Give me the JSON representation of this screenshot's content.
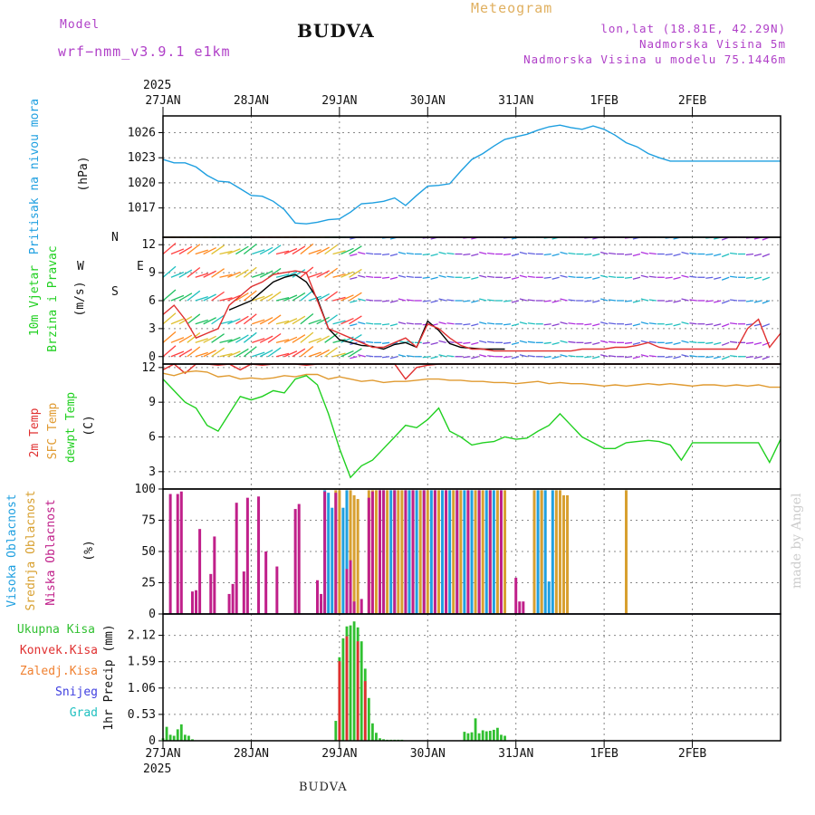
{
  "header": {
    "title": "BUDVA",
    "subtitle": "Meteogram",
    "model_label": "Model",
    "model_name": "wrf−nmm_v3.9.1 e1km",
    "location": "lon,lat (18.81E, 42.29N)",
    "elevation": "Nadmorska Visina 5m",
    "model_elevation": "Nadmorska Visina u modelu 75.1446m",
    "bottom_title": "BUDVA",
    "credit": "made by Angel"
  },
  "axis": {
    "year": "2025",
    "dates": [
      "27JAN",
      "28JAN",
      "29JAN",
      "30JAN",
      "31JAN",
      "1FEB",
      "2FEB"
    ]
  },
  "colors": {
    "pressure": "#1e9fe0",
    "wind": "#d040e0",
    "temp2m": "#e03030",
    "sfc": "#e09a30",
    "dewpt": "#20d020",
    "high": "#20a0e0",
    "mid": "#d8a030",
    "low": "#c0208a",
    "total": "#30c030",
    "conv": "#e03030",
    "grid": "#888"
  },
  "chart_data": [
    {
      "type": "line",
      "title": "",
      "ylabel": "Pritisak na nivou mora",
      "yunit": "(hPa)",
      "ylim": [
        1013.5,
        1028.0
      ],
      "yticks": [
        1017,
        1020,
        1023,
        1026
      ],
      "series": [
        {
          "name": "Pritisak na nivou mora",
          "color": "#1e9fe0",
          "x": [
            0,
            3,
            6,
            9,
            12,
            15,
            18,
            21,
            24,
            27,
            30,
            33,
            36,
            39,
            42,
            45,
            48,
            51,
            54,
            57,
            60,
            63,
            66,
            69,
            72,
            75,
            78,
            81,
            84,
            87,
            90,
            93,
            96,
            99,
            102,
            105,
            108,
            111,
            114,
            117,
            120,
            123,
            126,
            129,
            132,
            135,
            138,
            141,
            144,
            147,
            150,
            153,
            156,
            159,
            162,
            165,
            168
          ],
          "y": [
            1022.8,
            1022.4,
            1022.4,
            1021.9,
            1020.9,
            1020.2,
            1020.1,
            1019.3,
            1018.5,
            1018.4,
            1017.8,
            1016.8,
            1015.2,
            1015.1,
            1015.3,
            1015.6,
            1015.7,
            1016.5,
            1017.5,
            1017.6,
            1017.8,
            1018.2,
            1017.3,
            1018.5,
            1019.6,
            1019.7,
            1019.9,
            1021.4,
            1022.8,
            1023.5,
            1024.4,
            1025.2,
            1025.5,
            1025.8,
            1026.3,
            1026.7,
            1026.9,
            1026.6,
            1026.4,
            1026.8,
            1026.4,
            1025.7,
            1024.8,
            1024.3,
            1023.5,
            1023.0,
            1022.6,
            1022.6,
            1022.6,
            1022.6,
            1022.6,
            1022.6,
            1022.6,
            1022.6,
            1022.6,
            1022.6,
            1022.6
          ]
        }
      ],
      "grid": true
    },
    {
      "type": "line",
      "title": "",
      "ylabel": "10m Vjetar Brzina i Pravac",
      "yunit": "(m/s)",
      "compass": [
        "N",
        "E",
        "S",
        "W"
      ],
      "ylim": [
        -0.8,
        12.8
      ],
      "yticks": [
        0,
        3,
        6,
        9,
        12
      ],
      "series": [
        {
          "name": "10m Vjetar",
          "color": "#000000",
          "x": [
            18,
            21,
            24,
            27,
            30,
            33,
            36,
            39,
            42,
            45,
            48,
            51,
            54,
            57,
            60,
            63,
            66,
            69,
            72,
            75,
            78,
            81,
            84,
            87,
            90,
            93
          ],
          "y": [
            5.0,
            5.5,
            6.0,
            7.0,
            8.0,
            8.5,
            8.8,
            8.0,
            6.2,
            3.0,
            1.8,
            1.5,
            1.2,
            1.1,
            0.8,
            1.3,
            1.5,
            1.0,
            3.8,
            2.8,
            1.4,
            1.0,
            0.9,
            0.8,
            0.8,
            0.8
          ]
        },
        {
          "name": "10m Vjetar (udari)",
          "color": "#e03030",
          "x": [
            0,
            3,
            6,
            9,
            12,
            15,
            18,
            21,
            24,
            27,
            30,
            33,
            36,
            39,
            42,
            45,
            48,
            51,
            54,
            57,
            60,
            63,
            66,
            69,
            72,
            75,
            78,
            81,
            84,
            87,
            90,
            93,
            96,
            99,
            102,
            105,
            108,
            111,
            114,
            117,
            120,
            123,
            126,
            129,
            132,
            135,
            138,
            141,
            144,
            147,
            150,
            153,
            156,
            159,
            162,
            165,
            168
          ],
          "y": [
            4.5,
            5.5,
            4.0,
            2.0,
            2.5,
            3.0,
            5.5,
            6.5,
            7.5,
            8.0,
            8.8,
            9.0,
            9.2,
            9.0,
            6.0,
            3.0,
            2.5,
            2.0,
            1.5,
            1.0,
            1.0,
            1.5,
            2.0,
            1.0,
            3.5,
            3.0,
            2.0,
            1.2,
            0.8,
            0.8,
            0.6,
            0.6,
            0.6,
            0.6,
            0.6,
            0.6,
            0.6,
            0.6,
            0.8,
            0.8,
            0.8,
            1.0,
            1.0,
            1.2,
            1.5,
            1.0,
            0.8,
            0.8,
            0.8,
            0.8,
            0.8,
            0.8,
            0.8,
            3.0,
            4.0,
            1.0,
            2.5
          ]
        }
      ],
      "grid": true
    },
    {
      "type": "line",
      "title": "",
      "ylabel": "2m Temp / SFC Temp / dewpt Temp",
      "yunit": "(C)",
      "ylim": [
        1.5,
        12.3
      ],
      "yticks": [
        3,
        6,
        9,
        12
      ],
      "series": [
        {
          "name": "2m Temp",
          "color": "#e03030",
          "x": [
            0,
            3,
            6,
            9,
            12,
            15,
            18,
            21,
            24,
            27,
            30,
            33,
            36,
            39,
            42,
            45,
            48,
            51,
            54,
            57,
            60,
            63,
            66,
            69,
            72,
            75,
            78,
            81,
            84,
            87,
            90,
            93,
            96,
            99,
            102,
            105,
            108,
            111,
            114,
            117,
            120,
            123,
            126,
            129,
            132,
            135,
            138,
            141,
            144,
            147,
            150,
            153,
            156,
            159,
            162,
            165,
            168
          ],
          "y": [
            11.8,
            12.3,
            11.5,
            12.3,
            12.3,
            12.2,
            12.3,
            11.8,
            12.3,
            12.2,
            12.3,
            12.3,
            12.3,
            12.2,
            12.3,
            12.3,
            12.3,
            12.3,
            12.3,
            12.3,
            12.3,
            12.3,
            11.0,
            12.0,
            12.2,
            12.3,
            12.3,
            12.3,
            12.3,
            12.3,
            12.3,
            12.3,
            12.3,
            12.3,
            12.3,
            12.3,
            12.3,
            12.3,
            12.3,
            12.3,
            12.3,
            12.3,
            12.3,
            12.3,
            12.3,
            12.3,
            12.3,
            12.3,
            12.3,
            12.3,
            12.3,
            12.3,
            12.3,
            12.3,
            12.3,
            12.3,
            12.3
          ]
        },
        {
          "name": "SFC Temp",
          "color": "#e09a30",
          "x": [
            0,
            3,
            6,
            9,
            12,
            15,
            18,
            21,
            24,
            27,
            30,
            33,
            36,
            39,
            42,
            45,
            48,
            51,
            54,
            57,
            60,
            63,
            66,
            69,
            72,
            75,
            78,
            81,
            84,
            87,
            90,
            93,
            96,
            99,
            102,
            105,
            108,
            111,
            114,
            117,
            120,
            123,
            126,
            129,
            132,
            135,
            138,
            141,
            144,
            147,
            150,
            153,
            156,
            159,
            162,
            165,
            168
          ],
          "y": [
            11.5,
            11.3,
            11.6,
            11.7,
            11.6,
            11.2,
            11.3,
            11.0,
            11.1,
            11.0,
            11.1,
            11.3,
            11.2,
            11.4,
            11.4,
            11.0,
            11.2,
            11.0,
            10.8,
            10.9,
            10.7,
            10.8,
            10.8,
            10.9,
            11.0,
            11.0,
            10.9,
            10.9,
            10.8,
            10.8,
            10.7,
            10.7,
            10.6,
            10.7,
            10.8,
            10.6,
            10.7,
            10.6,
            10.6,
            10.5,
            10.4,
            10.5,
            10.4,
            10.5,
            10.6,
            10.5,
            10.6,
            10.5,
            10.4,
            10.5,
            10.5,
            10.4,
            10.5,
            10.4,
            10.5,
            10.3,
            10.3
          ]
        },
        {
          "name": "dewpt Temp",
          "color": "#20d020",
          "x": [
            0,
            3,
            6,
            9,
            12,
            15,
            18,
            21,
            24,
            27,
            30,
            33,
            36,
            39,
            42,
            45,
            48,
            51,
            54,
            57,
            60,
            63,
            66,
            69,
            72,
            75,
            78,
            81,
            84,
            87,
            90,
            93,
            96,
            99,
            102,
            105,
            108,
            111,
            114,
            117,
            120,
            123,
            126,
            129,
            132,
            135,
            138,
            141,
            144,
            147,
            150,
            153,
            156,
            159,
            162,
            165,
            168
          ],
          "y": [
            11.0,
            10.0,
            9.0,
            8.5,
            7.0,
            6.5,
            8.0,
            9.5,
            9.2,
            9.5,
            10.0,
            9.8,
            11.0,
            11.3,
            10.5,
            8.0,
            5.0,
            2.5,
            3.5,
            4.0,
            5.0,
            6.0,
            7.0,
            6.8,
            7.5,
            8.5,
            6.5,
            6.0,
            5.3,
            5.5,
            5.6,
            6.0,
            5.8,
            5.9,
            6.5,
            7.0,
            8.0,
            7.0,
            6.0,
            5.5,
            5.0,
            5.0,
            5.5,
            5.6,
            5.7,
            5.6,
            5.3,
            4.0,
            5.5,
            5.5,
            5.5,
            5.5,
            5.5,
            5.5,
            5.5,
            3.8,
            5.8
          ]
        }
      ],
      "grid": true
    },
    {
      "type": "bar",
      "title": "",
      "ylabel": "Visoka Oblacnost / Srednja Oblacnost / Niska Oblacnost",
      "yunit": "(%)",
      "ylim": [
        0,
        100
      ],
      "yticks": [
        0,
        25,
        50,
        75,
        100
      ],
      "series": [
        {
          "name": "Visoka Oblacnost",
          "color": "#20a0e0",
          "x": [
            43,
            44,
            45,
            46,
            49,
            50,
            59,
            60,
            62,
            63,
            66,
            67,
            69,
            71,
            73,
            74,
            76,
            78,
            80,
            82,
            84,
            86,
            88,
            90,
            92,
            102,
            103,
            104,
            105,
            106,
            126
          ],
          "values": [
            10,
            99,
            97,
            85,
            85,
            99,
            99,
            99,
            99,
            99,
            99,
            99,
            99,
            99,
            99,
            99,
            99,
            99,
            99,
            99,
            99,
            99,
            99,
            99,
            99,
            99,
            99,
            99,
            26,
            99,
            99
          ]
        },
        {
          "name": "Srednja Oblacnost",
          "color": "#d8a030",
          "x": [
            47,
            48,
            51,
            52,
            53,
            56,
            57,
            58,
            61,
            64,
            65,
            68,
            70,
            72,
            75,
            77,
            79,
            81,
            83,
            85,
            87,
            89,
            91,
            93,
            101,
            103,
            107,
            108,
            109,
            110,
            126
          ],
          "values": [
            99,
            99,
            99,
            95,
            92,
            99,
            99,
            99,
            99,
            99,
            99,
            99,
            99,
            99,
            99,
            99,
            99,
            99,
            99,
            99,
            99,
            99,
            99,
            99,
            99,
            99,
            99,
            99,
            95,
            95,
            99
          ]
        },
        {
          "name": "Niska Oblacnost",
          "color": "#c0208a",
          "x": [
            2,
            4,
            5,
            8,
            9,
            10,
            13,
            14,
            18,
            19,
            20,
            22,
            23,
            26,
            28,
            31,
            36,
            37,
            42,
            43,
            44,
            47,
            50,
            51,
            52,
            54,
            56,
            57,
            59,
            60,
            63,
            66,
            68,
            71,
            74,
            77,
            80,
            83,
            86,
            89,
            92,
            96,
            97,
            98
          ],
          "values": [
            96,
            96,
            98,
            18,
            19,
            68,
            32,
            62,
            16,
            24,
            89,
            34,
            93,
            94,
            50,
            38,
            84,
            88,
            27,
            16,
            98,
            97,
            36,
            43,
            10,
            12,
            93,
            98,
            99,
            99,
            99,
            99,
            99,
            99,
            99,
            99,
            99,
            99,
            99,
            99,
            99,
            29,
            10,
            10
          ]
        }
      ],
      "grid": true
    },
    {
      "type": "bar",
      "title": "",
      "ylabel": "1hr Precip",
      "yunit": "(mm)",
      "legend": [
        "Ukupna Kisa",
        "Konvek.Kisa",
        "Zaledj.Kisa",
        "Snijeg",
        "Grad"
      ],
      "legend_colors": [
        "#30c030",
        "#e03030",
        "#f08030",
        "#4040e0",
        "#20c0c0"
      ],
      "ylim": [
        0,
        2.55
      ],
      "yticks": [
        0,
        0.53,
        1.06,
        1.59,
        2.12
      ],
      "series": [
        {
          "name": "Ukupna Kisa",
          "color": "#30c030",
          "x": [
            0,
            1,
            2,
            3,
            4,
            5,
            6,
            7,
            8,
            47,
            48,
            49,
            50,
            51,
            52,
            53,
            54,
            55,
            56,
            57,
            58,
            59,
            60,
            61,
            62,
            63,
            64,
            65,
            82,
            83,
            84,
            85,
            86,
            87,
            88,
            89,
            90,
            91,
            92,
            93
          ],
          "values": [
            0.05,
            0.28,
            0.12,
            0.1,
            0.23,
            0.33,
            0.12,
            0.1,
            0.03,
            0.4,
            1.68,
            2.06,
            2.3,
            2.32,
            2.4,
            2.28,
            2.0,
            1.45,
            0.86,
            0.35,
            0.16,
            0.05,
            0.03,
            0.02,
            0.02,
            0.02,
            0.02,
            0.02,
            0.18,
            0.15,
            0.17,
            0.45,
            0.15,
            0.21,
            0.19,
            0.2,
            0.22,
            0.26,
            0.12,
            0.1
          ]
        },
        {
          "name": "Konvek.Kisa",
          "color": "#e03030",
          "x": [
            48,
            50,
            53,
            55
          ],
          "values": [
            1.6,
            2.1,
            2.0,
            1.2
          ]
        }
      ],
      "grid": true
    }
  ]
}
